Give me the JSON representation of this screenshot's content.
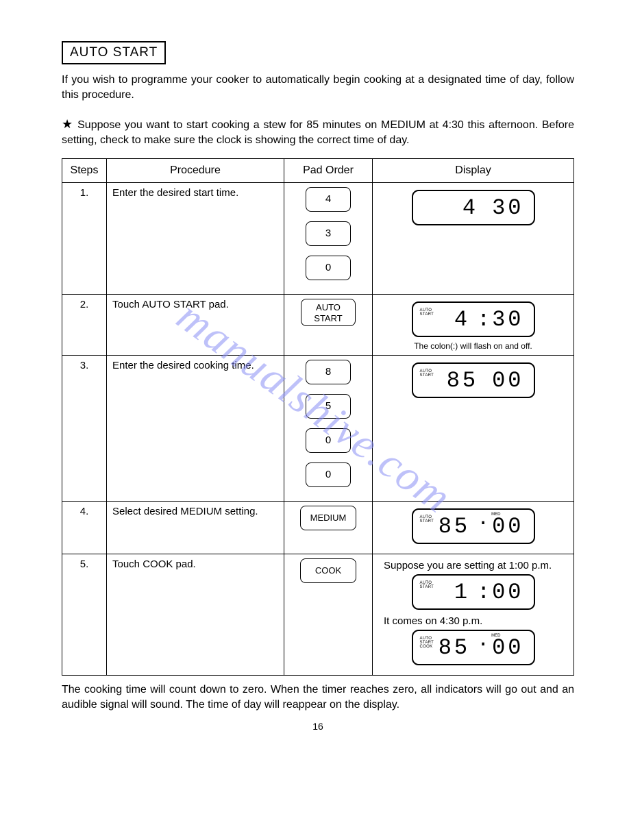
{
  "title": "AUTO START",
  "intro": "If you wish to programme your cooker to automatically begin cooking at a designated time of day, follow this procedure.",
  "example": "Suppose you want to start cooking a stew for 85 minutes on MEDIUM at 4:30 this afternoon. Before setting, check to make sure the clock is showing the correct time of day.",
  "star": "★",
  "headers": {
    "steps": "Steps",
    "procedure": "Procedure",
    "pad": "Pad Order",
    "display": "Display"
  },
  "rows": [
    {
      "num": "1.",
      "proc": "Enter the desired start time.",
      "pads": [
        "4",
        "3",
        "0"
      ],
      "pad_style": "num",
      "displays": [
        {
          "ind": "",
          "digits": "4  30",
          "sep": "",
          "med": ""
        }
      ],
      "caption": ""
    },
    {
      "num": "2.",
      "proc": "Touch AUTO START pad.",
      "pads": [
        "AUTO\nSTART"
      ],
      "pad_style": "wide",
      "displays": [
        {
          "ind": "AUTO\nSTART",
          "digits": "4 : 30",
          "sep": "colon",
          "med": ""
        }
      ],
      "caption": "The colon(:) will flash on and off."
    },
    {
      "num": "3.",
      "proc": "Enter the desired cooking time.",
      "pads": [
        "8",
        "5",
        "0",
        "0"
      ],
      "pad_style": "num",
      "displays": [
        {
          "ind": "AUTO\nSTART",
          "digits": "85  00",
          "sep": "",
          "med": ""
        }
      ],
      "caption": ""
    },
    {
      "num": "4.",
      "proc": "Select desired MEDIUM setting.",
      "pads": [
        "MEDIUM"
      ],
      "pad_style": "med",
      "displays": [
        {
          "ind": "AUTO\nSTART",
          "digits": "85 · 00",
          "sep": "dot",
          "med": "MED"
        }
      ],
      "caption": ""
    },
    {
      "num": "5.",
      "proc": "Touch COOK pad.",
      "pads": [
        "COOK"
      ],
      "pad_style": "med",
      "note1": "Suppose you are setting at 1:00 p.m.",
      "displays": [
        {
          "ind": "AUTO\nSTART",
          "digits": "1 : 00",
          "sep": "colon",
          "med": ""
        }
      ],
      "note2": "It comes on 4:30 p.m.",
      "displays2": [
        {
          "ind": "AUTO\nSTART\nCOOK",
          "digits": "85 · 00",
          "sep": "dot",
          "med": "MED"
        }
      ],
      "caption": ""
    }
  ],
  "outro": "The cooking time will count down to zero. When the timer reaches zero, all indicators will go out and an audible signal will sound. The time of day will reappear on the display.",
  "page_number": "16",
  "watermark": "manualshive.com",
  "colors": {
    "text": "#000000",
    "bg": "#ffffff",
    "watermark": "#8a8ff5"
  }
}
